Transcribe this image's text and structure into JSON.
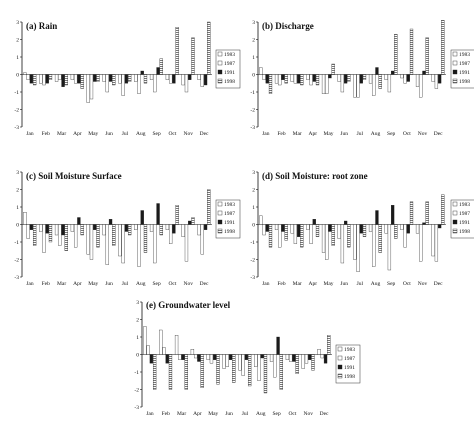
{
  "legend_entries": [
    "1983",
    "1987",
    "1991",
    "1998"
  ],
  "series_colors": {
    "1983": "#ffffff",
    "1987": "#ffffff",
    "1991": "#1a1a1a",
    "1998": "#bdbdbd"
  },
  "chart_data": [
    {
      "type": "bar",
      "title": "(a) Rain",
      "categories": [
        "Jan",
        "Feb",
        "Mar",
        "Apr",
        "May",
        "Jun",
        "Jul",
        "Aug",
        "Sep",
        "Oct",
        "Nov",
        "Dec"
      ],
      "ylim": [
        -3,
        3
      ],
      "yticks": [
        3,
        2,
        1,
        0,
        -1,
        -2,
        -3
      ],
      "legend_position": "right",
      "series": [
        {
          "name": "1983",
          "values": [
            0.1,
            -0.5,
            -0.4,
            -0.3,
            -1.6,
            -0.4,
            -0.5,
            -0.4,
            -0.3,
            -0.3,
            -0.6,
            -0.3
          ]
        },
        {
          "name": "1987",
          "values": [
            -0.3,
            -0.6,
            -0.3,
            -0.5,
            -1.4,
            -1.0,
            -1.2,
            -1.1,
            -1.0,
            -0.5,
            -1.0,
            -0.7
          ]
        },
        {
          "name": "1991",
          "values": [
            -0.5,
            -0.5,
            -0.7,
            -0.5,
            -0.4,
            -0.4,
            -0.5,
            0.2,
            0.4,
            -0.5,
            -0.3,
            -0.6
          ]
        },
        {
          "name": "1998",
          "values": [
            -0.6,
            -0.3,
            -0.6,
            -0.8,
            -0.4,
            -0.6,
            -0.4,
            -0.5,
            0.9,
            2.7,
            2.1,
            3.0
          ]
        }
      ]
    },
    {
      "type": "bar",
      "title": "(b) Discharge",
      "categories": [
        "Jan",
        "Feb",
        "Mar",
        "Apr",
        "May",
        "Jun",
        "Jul",
        "Aug",
        "Sep",
        "Oct",
        "Nov",
        "Dec"
      ],
      "ylim": [
        -3,
        3
      ],
      "yticks": [
        3,
        2,
        1,
        0,
        -1,
        -2,
        -3
      ],
      "legend_position": "right",
      "series": [
        {
          "name": "1983",
          "values": [
            0.4,
            -0.5,
            -0.4,
            -0.3,
            -1.1,
            -0.4,
            -1.3,
            -0.5,
            -0.3,
            -0.2,
            -0.7,
            -0.4
          ]
        },
        {
          "name": "1987",
          "values": [
            -0.3,
            -0.6,
            -0.5,
            -0.6,
            -1.1,
            -1.0,
            -1.3,
            -1.2,
            -1.0,
            -0.5,
            -1.3,
            -0.8
          ]
        },
        {
          "name": "1991",
          "values": [
            -0.5,
            -0.3,
            -0.5,
            -0.4,
            -0.2,
            -0.5,
            -0.5,
            0.4,
            0.2,
            -0.4,
            0.2,
            -0.5
          ]
        },
        {
          "name": "1998",
          "values": [
            -1.1,
            -0.5,
            -0.6,
            -0.6,
            0.6,
            -0.4,
            -0.3,
            -0.8,
            2.3,
            2.6,
            2.1,
            3.1
          ]
        }
      ]
    },
    {
      "type": "bar",
      "title": "(c) Soil Moisture Surface",
      "categories": [
        "Jan",
        "Feb",
        "Mar",
        "Apr",
        "May",
        "Jun",
        "Jul",
        "Aug",
        "Sep",
        "Oct",
        "Nov",
        "Dec"
      ],
      "ylim": [
        -3,
        3
      ],
      "yticks": [
        3,
        2,
        1,
        0,
        -1,
        -2,
        -3
      ],
      "legend_position": "right",
      "series": [
        {
          "name": "1983",
          "values": [
            0.7,
            -0.4,
            -0.6,
            -0.4,
            -1.7,
            -0.6,
            -1.8,
            -0.3,
            -0.4,
            -0.3,
            -0.7,
            -0.6
          ]
        },
        {
          "name": "1987",
          "values": [
            -0.8,
            -1.6,
            -1.2,
            -1.3,
            -2.0,
            -2.3,
            -2.2,
            -2.4,
            -2.2,
            -1.1,
            -2.1,
            -1.7
          ]
        },
        {
          "name": "1991",
          "values": [
            -0.3,
            -0.5,
            -0.6,
            0.4,
            -0.3,
            0.3,
            -0.4,
            0.8,
            1.2,
            -0.5,
            0.2,
            -0.3
          ]
        },
        {
          "name": "1998",
          "values": [
            -1.2,
            -1.0,
            -1.5,
            -0.6,
            -1.3,
            -1.2,
            -0.6,
            -1.6,
            -0.6,
            1.1,
            0.4,
            2.0
          ]
        }
      ]
    },
    {
      "type": "bar",
      "title": "(d) Soil Moisture: root zone",
      "categories": [
        "Jan",
        "Feb",
        "Mar",
        "Apr",
        "May",
        "Jun",
        "Jul",
        "Aug",
        "Sep",
        "Oct",
        "Nov",
        "Dec"
      ],
      "ylim": [
        -3,
        3
      ],
      "yticks": [
        3,
        2,
        1,
        0,
        -1,
        -2,
        -3
      ],
      "legend_position": "right",
      "series": [
        {
          "name": "1983",
          "values": [
            0.5,
            -0.3,
            -0.5,
            -0.3,
            -1.6,
            -0.8,
            -2.0,
            -0.4,
            -0.5,
            -0.3,
            -0.5,
            -1.8
          ]
        },
        {
          "name": "1987",
          "values": [
            -0.6,
            -1.3,
            -1.1,
            -1.1,
            -2.0,
            -2.2,
            -2.7,
            -2.4,
            -2.6,
            -1.3,
            -2.1,
            -2.1
          ]
        },
        {
          "name": "1991",
          "values": [
            -0.4,
            -0.4,
            -0.7,
            0.3,
            -0.4,
            0.2,
            -0.5,
            0.8,
            1.1,
            -0.5,
            0.1,
            -0.2
          ]
        },
        {
          "name": "1998",
          "values": [
            -1.3,
            -0.9,
            -1.3,
            -0.7,
            -1.2,
            -1.3,
            -0.7,
            -1.6,
            -0.8,
            1.3,
            1.3,
            1.7
          ]
        }
      ]
    },
    {
      "type": "bar",
      "title": "(e) Groundwater level",
      "categories": [
        "Jan",
        "Feb",
        "Mar",
        "Apr",
        "May",
        "Jun",
        "Jul",
        "Aug",
        "Sep",
        "Oct",
        "Nov",
        "Dec"
      ],
      "ylim": [
        -3,
        3
      ],
      "yticks": [
        3,
        2,
        1,
        0,
        -1,
        -2,
        -3
      ],
      "legend_position": "right",
      "series": [
        {
          "name": "1983",
          "values": [
            1.6,
            1.4,
            1.1,
            0.3,
            -0.3,
            -0.8,
            -0.9,
            -0.7,
            -0.4,
            -0.3,
            -0.8,
            0.3
          ]
        },
        {
          "name": "1987",
          "values": [
            0.5,
            0.4,
            -0.3,
            -0.2,
            -0.5,
            -0.7,
            -1.2,
            -1.5,
            -1.3,
            -0.4,
            -0.5,
            -0.2
          ]
        },
        {
          "name": "1991",
          "values": [
            -0.5,
            -0.5,
            -0.3,
            -0.4,
            -0.3,
            -0.3,
            -0.3,
            -0.2,
            1.0,
            -0.4,
            -0.3,
            -0.5
          ]
        },
        {
          "name": "1998",
          "values": [
            -2.0,
            -2.0,
            -2.0,
            -1.9,
            -1.7,
            -1.6,
            -1.8,
            -2.2,
            -2.0,
            -1.1,
            -0.9,
            1.1
          ]
        }
      ]
    }
  ]
}
